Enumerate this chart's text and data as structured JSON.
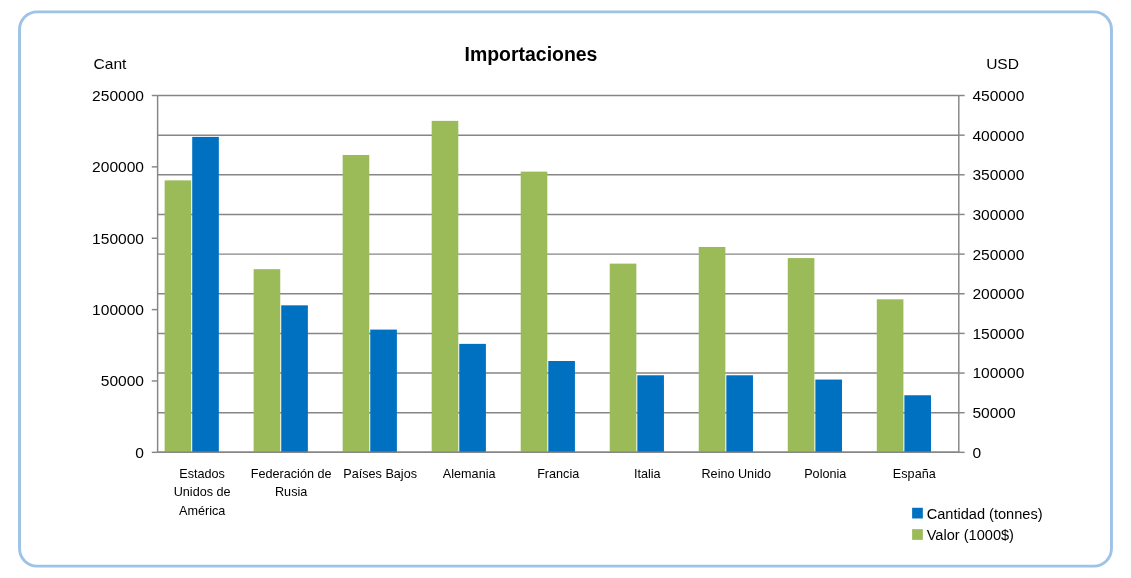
{
  "chart_data": {
    "type": "bar",
    "title": "Importaciones",
    "ylabel": "Cant",
    "y2label": "USD",
    "categories": [
      "Estados Unidos de América",
      "Federación de Rusia",
      "Países Bajos",
      "Alemania",
      "Francia",
      "Italia",
      "Reino Unido",
      "Polonia",
      "España"
    ],
    "series": [
      {
        "name": "Cantidad (tonnes)",
        "color": "#0070c0",
        "values": [
          221000,
          103000,
          86000,
          76000,
          64000,
          54000,
          54000,
          51000,
          40000
        ]
      },
      {
        "name": "Valor (1000$)",
        "color": "#9bbb59",
        "axis": "y2",
        "values": [
          343000,
          231000,
          375000,
          418000,
          354000,
          238000,
          259000,
          245000,
          193000
        ]
      }
    ],
    "ylim": [
      0,
      250000
    ],
    "yticks": [
      0,
      50000,
      100000,
      150000,
      200000,
      250000
    ],
    "y2lim": [
      0,
      450000
    ],
    "y2ticks": [
      0,
      50000,
      100000,
      150000,
      200000,
      250000,
      300000,
      350000,
      400000,
      450000
    ],
    "grid": true,
    "legend": "bottom right"
  }
}
